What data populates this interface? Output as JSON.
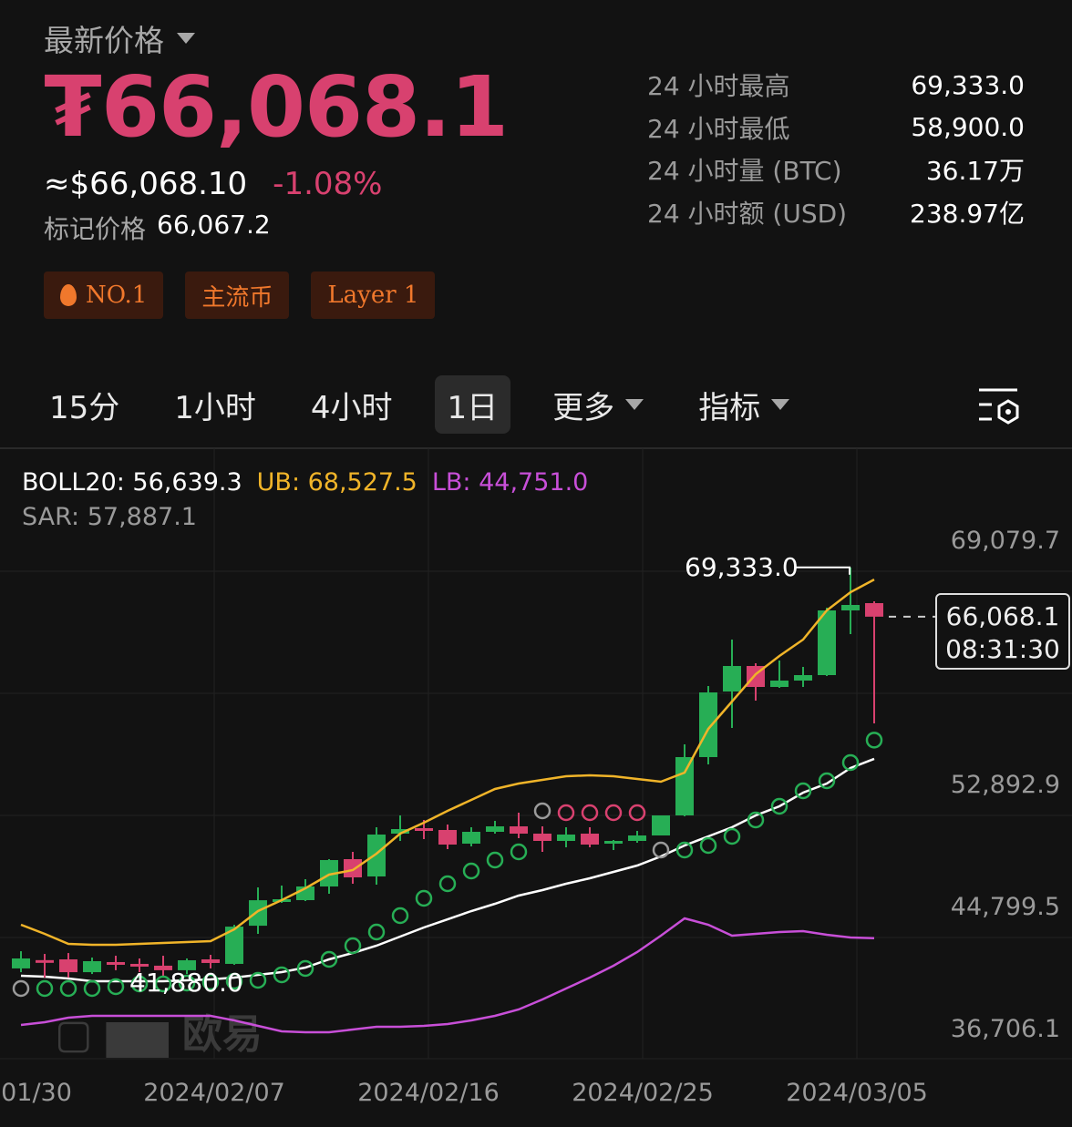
{
  "header": {
    "price_label": "最新价格",
    "last_price": "₮66,068.1",
    "usd_price": "≈$66,068.10",
    "change": "-1.08%",
    "mark_label": "标记价格",
    "mark_price": "66,067.2"
  },
  "stats": [
    {
      "label": "24 小时最高",
      "value": "69,333.0"
    },
    {
      "label": "24 小时最低",
      "value": "58,900.0"
    },
    {
      "label": "24 小时量 (BTC)",
      "value": "36.17万"
    },
    {
      "label": "24 小时额 (USD)",
      "value": "238.97亿"
    }
  ],
  "tags": [
    {
      "label": "NO.1",
      "icon": "flame-icon"
    },
    {
      "label": "主流币"
    },
    {
      "label": "Layer 1"
    }
  ],
  "tabs": [
    {
      "label": "15分"
    },
    {
      "label": "1小时"
    },
    {
      "label": "4小时"
    },
    {
      "label": "1日",
      "active": true
    },
    {
      "label": "更多",
      "dropdown": true
    },
    {
      "label": "指标",
      "dropdown": true
    }
  ],
  "indicators": {
    "boll": "BOLL20: 56,639.3",
    "ub": "UB: 68,527.5",
    "lb": "LB: 44,751.0",
    "sar": "SAR: 57,887.1"
  },
  "colors": {
    "up": "#27ae55",
    "down": "#d8416f",
    "ub": "#f0b429",
    "mid": "#ffffff",
    "lb": "#c84fd8",
    "sar_neutral": "#9a9a9a"
  },
  "watermark": "欧易",
  "chart_data": {
    "type": "candlestick",
    "y_ticks": [
      "69,079.7",
      "52,892.9",
      "44,799.5",
      "36,706.1"
    ],
    "x_ticks": [
      "01/30",
      "2024/02/07",
      "2024/02/16",
      "2024/02/25",
      "2024/03/05"
    ],
    "high_marker": "69,333.0",
    "low_marker": "41,880.0",
    "current_price": "66,068.1",
    "countdown": "08:31:30",
    "ohlc": [
      [
        42750,
        43890,
        42500,
        43410
      ],
      [
        43300,
        43710,
        42140,
        43250
      ],
      [
        43350,
        43770,
        42140,
        42500
      ],
      [
        42500,
        43470,
        42380,
        43230
      ],
      [
        43170,
        43590,
        42630,
        43110
      ],
      [
        43050,
        43410,
        42500,
        42930
      ],
      [
        42930,
        43590,
        42140,
        42630
      ],
      [
        42630,
        43410,
        42380,
        43290
      ],
      [
        43350,
        43650,
        42750,
        43110
      ],
      [
        43050,
        45640,
        42990,
        45520
      ],
      [
        45580,
        48120,
        45040,
        47270
      ],
      [
        47155,
        48242,
        47095,
        47336
      ],
      [
        47276,
        48665,
        47215,
        48182
      ],
      [
        48182,
        49994,
        47698,
        49933
      ],
      [
        49994,
        50477,
        48363,
        48786
      ],
      [
        48846,
        52108,
        48303,
        51625
      ],
      [
        51685,
        52893,
        51202,
        51987
      ],
      [
        52047,
        52591,
        51323,
        51927
      ],
      [
        51927,
        52289,
        50658,
        50960
      ],
      [
        51021,
        52108,
        50839,
        51806
      ],
      [
        51806,
        52531,
        51685,
        52168
      ],
      [
        52168,
        53074,
        51383,
        51685
      ],
      [
        51685,
        52168,
        50477,
        51202
      ],
      [
        51202,
        52108,
        50779,
        51625
      ],
      [
        51685,
        52108,
        50779,
        50960
      ],
      [
        51081,
        51262,
        50598,
        51202
      ],
      [
        51202,
        51866,
        51081,
        51564
      ],
      [
        51564,
        52893,
        51564,
        52893
      ],
      [
        52893,
        57604,
        52833,
        56759
      ],
      [
        56759,
        61470,
        56275,
        61047
      ],
      [
        61107,
        64550,
        58691,
        62798
      ],
      [
        62798,
        62980,
        60503,
        61409
      ],
      [
        61409,
        63161,
        61349,
        61832
      ],
      [
        61832,
        62738,
        61409,
        62194
      ],
      [
        62194,
        66664,
        62134,
        66483
      ],
      [
        66483,
        69333,
        64913,
        66845
      ],
      [
        66966,
        67087,
        58993,
        66068.1
      ]
    ],
    "ub": [
      45645,
      45041,
      44377,
      44316,
      44316,
      44377,
      44437,
      44497,
      44558,
      45343,
      46551,
      47276,
      48061,
      48967,
      49269,
      50356,
      51685,
      52410,
      53195,
      53920,
      54645,
      55007,
      55249,
      55490,
      55551,
      55490,
      55309,
      55128,
      55732,
      58631,
      60443,
      62255,
      63463,
      64550,
      66483,
      67691,
      68527.5
    ],
    "mid": [
      42263,
      42202,
      42081,
      41900,
      41900,
      41900,
      41900,
      41960,
      42021,
      42142,
      42323,
      42504,
      42806,
      43350,
      43773,
      44256,
      44860,
      45464,
      46007,
      46551,
      47034,
      47578,
      47940,
      48363,
      48725,
      49148,
      49571,
      50175,
      50900,
      51504,
      52108,
      52893,
      53497,
      54403,
      55007,
      56034,
      56639.3
    ],
    "lb": [
      38999,
      39182,
      39484,
      39605,
      39605,
      39605,
      39605,
      39605,
      39605,
      39303,
      38941,
      38578,
      38518,
      38518,
      38699,
      38880,
      38880,
      38941,
      39062,
      39303,
      39605,
      40028,
      40692,
      41417,
      42142,
      42927,
      43833,
      44920,
      46068,
      45645,
      44920,
      45041,
      45162,
      45223,
      44981,
      44799,
      44751
    ],
    "sar": [
      41417,
      41417,
      41417,
      41417,
      41538,
      41719,
      41719,
      41779,
      41840,
      41900,
      41960,
      42323,
      42746,
      43350,
      44256,
      45162,
      46249,
      47397,
      48363,
      49209,
      49934,
      50477,
      53195,
      53074,
      53074,
      53074,
      53074,
      50598,
      50598,
      50900,
      51504,
      52591,
      53497,
      54524,
      55188,
      56396,
      57887.1
    ],
    "sar_state": [
      "n",
      "u",
      "u",
      "u",
      "u",
      "u",
      "u",
      "u",
      "u",
      "u",
      "u",
      "u",
      "u",
      "u",
      "u",
      "u",
      "u",
      "u",
      "u",
      "u",
      "u",
      "u",
      "n",
      "d",
      "d",
      "d",
      "d",
      "n",
      "u",
      "u",
      "u",
      "u",
      "u",
      "u",
      "u",
      "u",
      "u"
    ]
  }
}
